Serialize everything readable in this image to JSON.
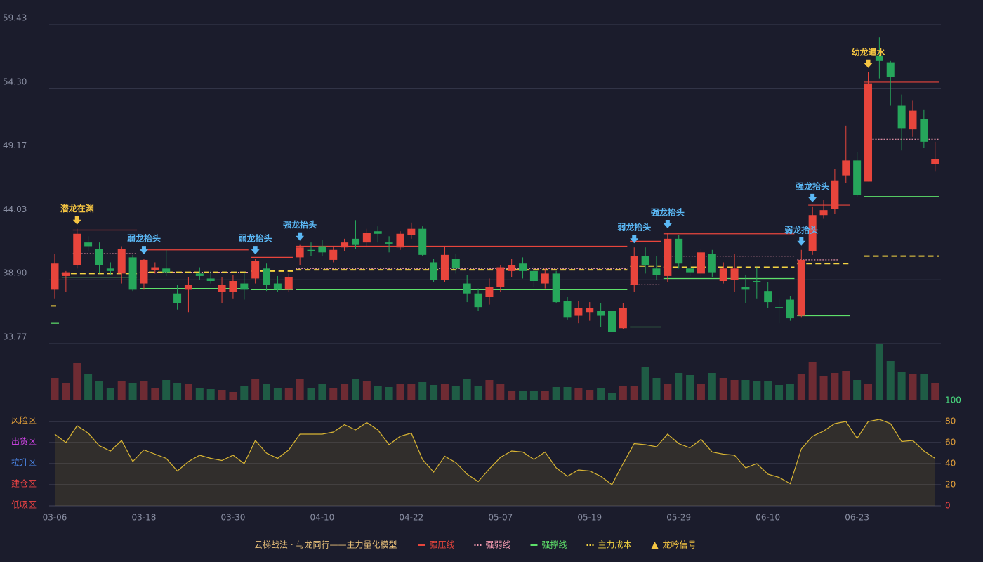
{
  "chart_data": [
    {
      "type": "candlestick",
      "categories": [
        "03-06",
        null,
        null,
        null,
        null,
        null,
        null,
        null,
        "03-18",
        null,
        null,
        null,
        null,
        null,
        null,
        null,
        "03-30",
        null,
        null,
        null,
        null,
        null,
        null,
        null,
        "04-10",
        null,
        null,
        null,
        null,
        null,
        null,
        null,
        "04-22",
        null,
        null,
        null,
        null,
        null,
        null,
        null,
        "05-07",
        null,
        null,
        null,
        null,
        null,
        null,
        null,
        "05-19",
        null,
        null,
        null,
        null,
        null,
        null,
        null,
        "05-29",
        null,
        null,
        null,
        null,
        null,
        null,
        null,
        "06-10",
        null,
        null,
        null,
        null,
        null,
        null,
        null,
        "06-23",
        null,
        null,
        null,
        null,
        null,
        null,
        null
      ],
      "open": [
        38.1,
        39.2,
        40.1,
        41.9,
        41.4,
        39.8,
        39.4,
        40.7,
        38.6,
        39.7,
        39.8,
        37.8,
        38.1,
        39.4,
        39.0,
        37.9,
        37.9,
        38.6,
        39.0,
        39.8,
        38.6,
        38.1,
        40.7,
        41.3,
        41.6,
        40.5,
        41.5,
        42.2,
        41.9,
        42.8,
        41.9,
        41.5,
        42.5,
        43.0,
        40.3,
        38.9,
        40.6,
        38.6,
        37.8,
        37.5,
        38.3,
        39.6,
        40.2,
        39.6,
        38.6,
        39.4,
        37.2,
        36.0,
        36.3,
        36.4,
        36.4,
        35.0,
        38.5,
        40.8,
        39.8,
        39.2,
        42.2,
        39.8,
        39.4,
        41.0,
        38.8,
        38.9,
        38.3,
        38.8,
        38.0,
        36.7,
        37.3,
        36.0,
        41.2,
        44.1,
        44.6,
        47.3,
        48.5,
        46.8,
        56.9,
        56.4,
        52.9,
        51.0,
        51.8,
        48.2
      ],
      "high": [
        41.0,
        39.6,
        43.0,
        42.4,
        41.9,
        40.3,
        41.6,
        40.9,
        40.6,
        40.3,
        41.3,
        38.5,
        39.1,
        39.9,
        39.6,
        39.1,
        39.3,
        39.5,
        40.6,
        40.2,
        39.2,
        39.4,
        41.7,
        41.9,
        42.1,
        41.6,
        42.2,
        43.7,
        43.0,
        43.2,
        42.4,
        42.8,
        43.5,
        43.2,
        40.6,
        41.6,
        41.0,
        39.3,
        38.2,
        39.0,
        40.1,
        40.6,
        40.7,
        40.0,
        39.8,
        39.6,
        37.5,
        37.2,
        37.1,
        37.0,
        36.8,
        37.0,
        41.5,
        41.5,
        40.8,
        42.7,
        42.5,
        40.4,
        41.4,
        41.3,
        40.3,
        41.0,
        39.3,
        39.9,
        38.7,
        37.4,
        37.6,
        41.3,
        44.8,
        45.3,
        47.8,
        51.3,
        49.2,
        55.6,
        58.4,
        56.5,
        53.8,
        53.3,
        52.6,
        50.0
      ],
      "low": [
        37.4,
        37.9,
        39.8,
        41.2,
        39.4,
        39.3,
        38.6,
        38.0,
        38.1,
        39.4,
        39.2,
        36.5,
        36.3,
        38.9,
        38.6,
        37.0,
        37.4,
        37.3,
        38.6,
        38.0,
        37.9,
        37.9,
        40.1,
        40.8,
        40.8,
        40.3,
        41.2,
        41.4,
        41.5,
        41.9,
        41.1,
        41.3,
        42.2,
        40.8,
        38.7,
        38.7,
        39.4,
        37.1,
        36.4,
        36.9,
        37.9,
        39.1,
        39.0,
        38.3,
        38.2,
        37.0,
        35.7,
        35.4,
        35.6,
        35.1,
        34.6,
        34.9,
        37.9,
        39.4,
        38.9,
        38.7,
        39.8,
        39.2,
        39.1,
        39.1,
        38.6,
        37.9,
        37.0,
        37.4,
        36.6,
        35.4,
        35.6,
        35.9,
        40.9,
        43.8,
        44.2,
        46.7,
        45.6,
        46.8,
        55.1,
        52.9,
        49.3,
        50.4,
        49.5,
        47.6
      ],
      "close": [
        40.2,
        39.5,
        42.6,
        41.6,
        40.1,
        39.6,
        41.4,
        38.1,
        40.5,
        39.9,
        39.5,
        37.0,
        38.5,
        39.2,
        38.8,
        38.5,
        38.8,
        38.1,
        40.4,
        38.5,
        38.1,
        39.1,
        41.5,
        41.2,
        41.1,
        41.3,
        41.9,
        41.7,
        42.7,
        42.6,
        41.8,
        42.6,
        43.0,
        40.9,
        38.9,
        40.9,
        39.8,
        37.8,
        36.7,
        38.3,
        39.9,
        40.1,
        39.6,
        38.8,
        39.4,
        37.1,
        35.9,
        36.6,
        36.6,
        36.0,
        34.7,
        36.6,
        40.8,
        40.1,
        39.3,
        42.2,
        40.2,
        39.5,
        41.1,
        39.5,
        39.8,
        39.8,
        38.1,
        38.7,
        37.1,
        36.6,
        35.8,
        40.5,
        44.1,
        44.5,
        46.9,
        48.5,
        45.7,
        54.7,
        56.5,
        55.2,
        51.1,
        52.5,
        50.0,
        48.6
      ],
      "up_color": "#e8453c",
      "down_color": "#26a65b",
      "ylim": [
        33.77,
        59.43
      ],
      "yticks": [
        33.77,
        {
          "value": 38.9,
          "label": "38.90"
        },
        44.03,
        49.17,
        {
          "value": 54.3,
          "label": "54.30"
        },
        59.43
      ],
      "grid": true,
      "levels": [
        {
          "name": "强压线",
          "color": "#e8453c",
          "dash": "solid",
          "segments": [
            [
              2,
              7,
              42.9
            ],
            [
              8,
              17,
              41.3
            ],
            [
              18,
              21,
              40.7
            ],
            [
              22,
              51,
              41.6
            ],
            [
              52,
              54,
              42.0
            ],
            [
              55,
              66,
              42.6
            ],
            [
              68,
              71,
              44.9
            ],
            [
              73,
              79,
              54.8
            ]
          ]
        },
        {
          "name": "强弱线",
          "color": "#f49ab0",
          "dash": "dotted",
          "segments": [
            [
              2,
              7,
              41.0
            ],
            [
              8,
              17,
              39.5
            ],
            [
              22,
              51,
              39.8
            ],
            [
              52,
              54,
              38.5
            ],
            [
              55,
              66,
              40.8
            ],
            [
              67,
              70,
              40.5
            ],
            [
              73,
              79,
              50.2
            ]
          ]
        },
        {
          "name": "强撑线",
          "color": "#5ee06a",
          "dash": "solid",
          "segments": [
            [
              0,
              0,
              35.4
            ],
            [
              1,
              7,
              39.1
            ],
            [
              8,
              17,
              38.2
            ],
            [
              18,
              21,
              38.1
            ],
            [
              22,
              51,
              38.1
            ],
            [
              52,
              54,
              35.1
            ],
            [
              55,
              66,
              39.0
            ],
            [
              67,
              71,
              36.0
            ],
            [
              73,
              79,
              45.6
            ]
          ]
        },
        {
          "name": "主力成本",
          "color": "#f5d442",
          "dash": "dashed",
          "segments": [
            [
              0,
              0,
              36.8
            ],
            [
              1,
              7,
              39.4
            ],
            [
              8,
              17,
              39.5
            ],
            [
              18,
              21,
              39.6
            ],
            [
              22,
              51,
              39.7
            ],
            [
              52,
              54,
              40.0
            ],
            [
              55,
              66,
              39.9
            ],
            [
              67,
              71,
              40.2
            ],
            [
              73,
              79,
              40.8
            ]
          ]
        }
      ],
      "signals": [
        {
          "index": 2,
          "label": "潜龙在渊",
          "color": "#f5c542"
        },
        {
          "index": 8,
          "label": "弱龙抬头",
          "color": "#5bb8f5"
        },
        {
          "index": 18,
          "label": "弱龙抬头",
          "color": "#5bb8f5"
        },
        {
          "index": 22,
          "label": "强龙抬头",
          "color": "#5bb8f5"
        },
        {
          "index": 52,
          "label": "弱龙抬头",
          "color": "#5bb8f5"
        },
        {
          "index": 55,
          "label": "强龙抬头",
          "color": "#5bb8f5"
        },
        {
          "index": 67,
          "label": "弱龙抬头",
          "color": "#5bb8f5"
        },
        {
          "index": 68,
          "label": "强龙抬头",
          "color": "#5bb8f5"
        },
        {
          "index": 73,
          "label": "幼龙遣水",
          "color": "#f5c542"
        }
      ],
      "legend_title": "云梯战法 · 与龙同行——主力量化模型",
      "signal_legend": "龙吟信号",
      "signal_legend_color": "#f5c542"
    },
    {
      "type": "bar",
      "values": [
        32,
        25,
        53,
        38,
        28,
        18,
        28,
        25,
        27,
        17,
        29,
        25,
        24,
        17,
        16,
        15,
        12,
        21,
        31,
        23,
        17,
        17,
        30,
        18,
        23,
        17,
        24,
        31,
        28,
        21,
        19,
        24,
        24,
        26,
        22,
        23,
        21,
        30,
        21,
        29,
        24,
        13,
        14,
        14,
        14,
        19,
        19,
        17,
        15,
        17,
        11,
        20,
        21,
        47,
        32,
        24,
        39,
        36,
        24,
        39,
        32,
        29,
        29,
        27,
        27,
        22,
        24,
        37,
        54,
        35,
        39,
        42,
        29,
        24,
        81,
        56,
        41,
        37,
        37,
        25
      ],
      "up_color": "#6e2b33",
      "down_color": "#1f5c45"
    },
    {
      "type": "line",
      "series": [
        {
          "color": "#d9b533",
          "axis": "y2",
          "values": [
            68,
            60,
            76,
            69,
            57,
            52,
            62,
            42,
            53,
            49,
            45,
            33,
            42,
            48,
            45,
            43,
            48,
            40,
            62,
            50,
            45,
            53,
            68,
            68,
            68,
            70,
            77,
            72,
            79,
            72,
            58,
            66,
            69,
            44,
            32,
            47,
            41,
            30,
            23,
            35,
            46,
            52,
            51,
            44,
            51,
            36,
            28,
            34,
            33,
            28,
            20,
            40,
            59,
            58,
            56,
            68,
            59,
            55,
            63,
            51,
            49,
            48,
            36,
            40,
            30,
            27,
            21,
            54,
            66,
            71,
            78,
            80,
            64,
            80,
            82,
            78,
            61,
            62,
            52,
            45
          ]
        }
      ],
      "ylim": [
        0,
        100
      ],
      "yticks": [
        {
          "value": 80,
          "label": "风险区"
        },
        {
          "value": 60,
          "label": "出货区"
        },
        {
          "value": 40,
          "label": "拉升区"
        },
        {
          "value": 20,
          "label": "建仓区"
        },
        {
          "value": 0,
          "label": "低吸区"
        }
      ],
      "ytick_colors": [
        "#e8a33a",
        "#d946ef",
        "#4f8ff7",
        "#ef4444",
        "#ef4444"
      ],
      "y2lim": [
        0,
        100
      ],
      "y2ticks": [
        0,
        20,
        40,
        60,
        80,
        100
      ],
      "y2tick_colors": [
        "#ef4444",
        "#e8a33a",
        "#e8a33a",
        "#e8a33a",
        "#e8a33a",
        "#4ade80"
      ],
      "grid": true
    }
  ]
}
